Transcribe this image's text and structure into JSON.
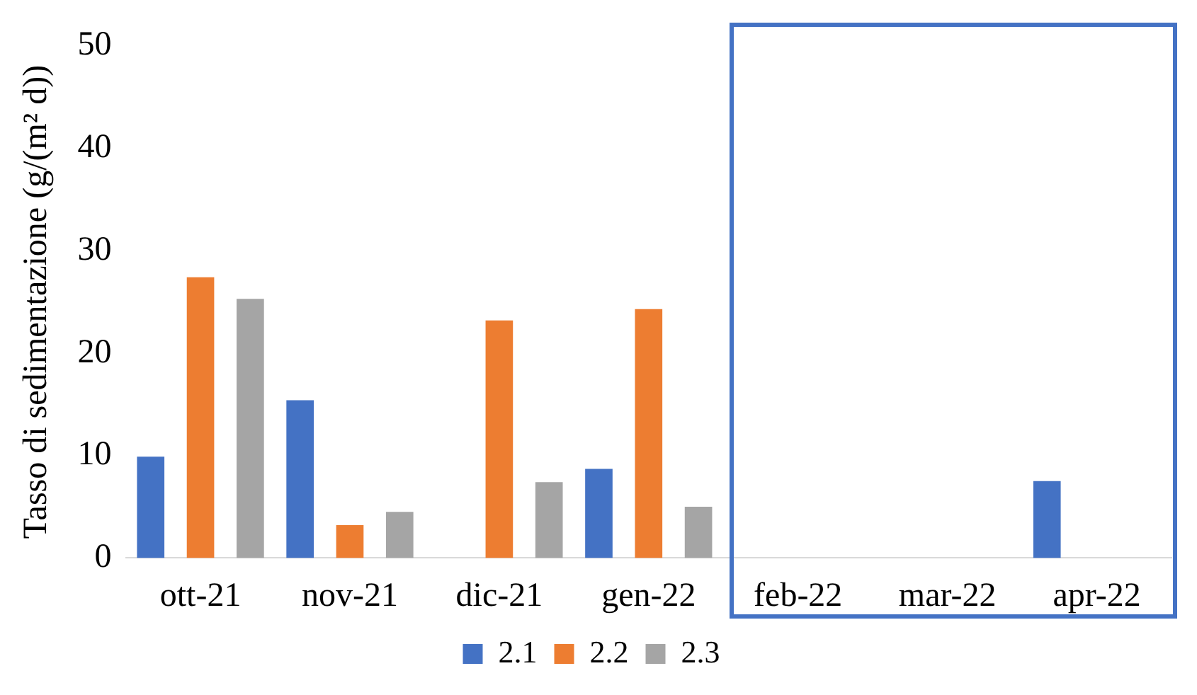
{
  "chart_data": {
    "type": "bar",
    "ylabel": "Tasso di sedimentazione (g/(m² d))",
    "categories": [
      "ott-21",
      "nov-21",
      "dic-21",
      "gen-22",
      "feb-22",
      "mar-22",
      "apr-22"
    ],
    "series": [
      {
        "name": "2.1",
        "color": "#4472c4",
        "values": [
          9.9,
          15.4,
          null,
          8.7,
          null,
          null,
          7.5
        ]
      },
      {
        "name": "2.2",
        "color": "#ed7d31",
        "values": [
          27.4,
          3.2,
          23.2,
          24.3,
          null,
          null,
          null
        ]
      },
      {
        "name": "2.3",
        "color": "#a5a5a5",
        "values": [
          25.3,
          4.5,
          7.4,
          5.0,
          null,
          null,
          null
        ]
      }
    ],
    "ylim": [
      0,
      50
    ],
    "yticks": [
      0,
      10,
      20,
      30,
      40,
      50
    ],
    "grid": false,
    "legend": "bottom"
  }
}
